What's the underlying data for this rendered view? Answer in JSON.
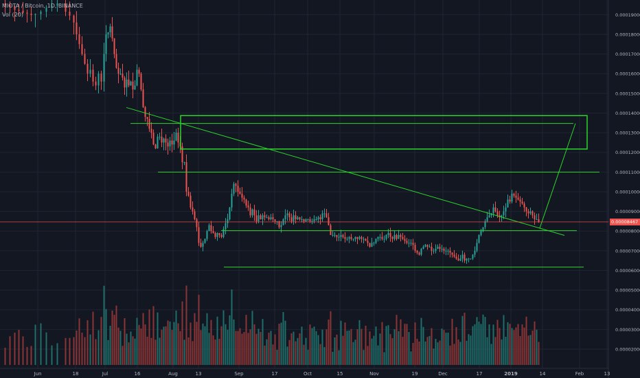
{
  "header": {
    "symbol_line": "MIOTA / Bitcoin, 1D, BINANCE",
    "volume_line": "Vol (20)"
  },
  "colors": {
    "background": "#131722",
    "grid": "#1f2433",
    "up": "#26a69a",
    "down": "#ef5350",
    "volume_up": "#1e6e6a",
    "volume_down": "#8b3436",
    "annotation": "#2bd62b",
    "axis_text": "#b2b5be"
  },
  "chart_data": {
    "type": "candlestick",
    "x_ticks": [
      "Jun",
      "18",
      "Jul",
      "16",
      "Aug",
      "13",
      "Sep",
      "17",
      "Oct",
      "15",
      "Nov",
      "19",
      "Dec",
      "17",
      "2019",
      "14",
      "Feb",
      "13"
    ],
    "y_ticks": [
      "0.00019000",
      "0.00018000",
      "0.00017000",
      "0.00016000",
      "0.00015000",
      "0.00014000",
      "0.00013000",
      "0.00012000",
      "0.00011000",
      "0.00010000",
      "0.00009000",
      "0.00008000",
      "0.00007000",
      "0.00006000",
      "0.00005000",
      "0.00004000",
      "0.00003000",
      "0.00002000"
    ],
    "ylim": [
      1.58e-05,
      0.0001957
    ],
    "last_price": "0.00008467",
    "last_price_value": 8.467e-05,
    "close_path": [
      [
        0,
        0.0001957
      ],
      [
        8,
        0.000195
      ],
      [
        15,
        0.000194
      ],
      [
        22,
        0.0001925
      ],
      [
        28,
        0.000192
      ],
      [
        34,
        0.000191
      ],
      [
        40,
        0.0001905
      ],
      [
        46,
        0.0001898
      ],
      [
        52,
        0.0001903
      ],
      [
        60,
        0.0001915
      ],
      [
        68,
        0.0001935
      ],
      [
        76,
        0.0001945
      ],
      [
        84,
        0.0001957
      ],
      [
        96,
        0.0001915
      ],
      [
        102,
        0.0001895
      ],
      [
        108,
        0.000186
      ],
      [
        112,
        0.00018
      ],
      [
        116,
        0.000175
      ],
      [
        120,
        0.00017
      ],
      [
        124,
        0.000165
      ],
      [
        128,
        0.00016
      ],
      [
        132,
        0.000162
      ],
      [
        136,
        0.000156
      ],
      [
        140,
        0.000154
      ],
      [
        144,
        0.00016
      ],
      [
        148,
        0.000156
      ],
      [
        152,
        0.00017
      ],
      [
        155,
        0.00018
      ],
      [
        158,
        0.000181
      ],
      [
        161,
        0.000184
      ],
      [
        164,
        0.000178
      ],
      [
        167,
        0.00017
      ],
      [
        170,
        0.000163
      ],
      [
        173,
        0.00016
      ],
      [
        176,
        0.00016
      ],
      [
        179,
        0.000158
      ],
      [
        182,
        0.000153
      ],
      [
        185,
        0.000157
      ],
      [
        188,
        0.000154
      ],
      [
        191,
        0.000156
      ],
      [
        194,
        0.000152
      ],
      [
        197,
        0.000154
      ],
      [
        200,
        0.000162
      ],
      [
        203,
        0.00016
      ],
      [
        206,
        0.000152
      ],
      [
        209,
        0.000143
      ],
      [
        212,
        0.000138
      ],
      [
        215,
        0.000137
      ],
      [
        218,
        0.000132
      ],
      [
        221,
        0.00013
      ],
      [
        224,
        0.000124
      ],
      [
        227,
        0.000122
      ],
      [
        230,
        0.000128
      ],
      [
        233,
        0.000128
      ],
      [
        236,
        0.000125
      ],
      [
        239,
        0.000127
      ],
      [
        242,
        0.000125
      ],
      [
        245,
        0.000123
      ],
      [
        248,
        0.000126
      ],
      [
        251,
        0.000124
      ],
      [
        254,
        0.000126
      ],
      [
        257,
        0.00013
      ],
      [
        260,
        0.000125
      ],
      [
        263,
        0.000123
      ],
      [
        266,
        0.000115
      ],
      [
        269,
        0.000115
      ],
      [
        272,
        0.0001
      ],
      [
        275,
        9.8e-05
      ],
      [
        278,
        9.2e-05
      ],
      [
        281,
        9e-05
      ],
      [
        284,
        8.6e-05
      ],
      [
        287,
        8.2e-05
      ],
      [
        290,
        7.4e-05
      ],
      [
        293,
        7.2e-05
      ],
      [
        296,
        7.4e-05
      ],
      [
        299,
        7.6e-05
      ],
      [
        302,
        8e-05
      ],
      [
        305,
        8.3e-05
      ],
      [
        308,
        8e-05
      ],
      [
        311,
        7.9e-05
      ],
      [
        314,
        7.7e-05
      ],
      [
        317,
        7.9e-05
      ],
      [
        320,
        7.8e-05
      ],
      [
        323,
        7.7e-05
      ],
      [
        326,
        8.1e-05
      ],
      [
        329,
        8.4e-05
      ],
      [
        332,
        8.6e-05
      ],
      [
        335,
        9.2e-05
      ],
      [
        338,
        9.9e-05
      ],
      [
        341,
        0.000104
      ],
      [
        344,
        0.000103
      ],
      [
        347,
        0.0001
      ],
      [
        350,
        9.9e-05
      ],
      [
        353,
        9.7e-05
      ],
      [
        356,
        9.6e-05
      ],
      [
        359,
        9.3e-05
      ],
      [
        362,
        9.2e-05
      ],
      [
        365,
        8.8e-05
      ],
      [
        368,
        9.1e-05
      ],
      [
        371,
        8.8e-05
      ],
      [
        374,
        8.5e-05
      ],
      [
        377,
        8.8e-05
      ],
      [
        380,
        8.6e-05
      ],
      [
        383,
        8.8e-05
      ],
      [
        386,
        8.7e-05
      ],
      [
        389,
        8.7e-05
      ],
      [
        392,
        8.6e-05
      ],
      [
        395,
        8.7e-05
      ],
      [
        398,
        8.6e-05
      ],
      [
        401,
        8.5e-05
      ],
      [
        404,
        8.5e-05
      ],
      [
        407,
        8.2e-05
      ],
      [
        410,
        8.3e-05
      ],
      [
        413,
        8.6e-05
      ],
      [
        416,
        8.8e-05
      ],
      [
        419,
        8.9e-05
      ],
      [
        422,
        8.7e-05
      ],
      [
        425,
        8.5e-05
      ],
      [
        428,
        8.8e-05
      ],
      [
        431,
        8.6e-05
      ],
      [
        434,
        8.7e-05
      ],
      [
        437,
        8.6e-05
      ],
      [
        440,
        8.6e-05
      ],
      [
        443,
        8.5e-05
      ],
      [
        446,
        8.6e-05
      ],
      [
        449,
        8.6e-05
      ],
      [
        452,
        8.5e-05
      ],
      [
        455,
        8.5e-05
      ],
      [
        458,
        8.6e-05
      ],
      [
        461,
        8.6e-05
      ],
      [
        464,
        8.7e-05
      ],
      [
        467,
        8.6e-05
      ],
      [
        470,
        8.9e-05
      ],
      [
        473,
        8.9e-05
      ],
      [
        476,
        8.7e-05
      ],
      [
        479,
        8.3e-05
      ],
      [
        482,
        7.8e-05
      ],
      [
        485,
        7.8e-05
      ],
      [
        488,
        7.8e-05
      ],
      [
        491,
        7.7e-05
      ],
      [
        494,
        7.7e-05
      ],
      [
        497,
        7.8e-05
      ],
      [
        500,
        7.7e-05
      ],
      [
        503,
        7.6e-05
      ],
      [
        506,
        7.6e-05
      ],
      [
        509,
        7.7e-05
      ],
      [
        512,
        7.6e-05
      ],
      [
        515,
        7.6e-05
      ],
      [
        518,
        7.7e-05
      ],
      [
        521,
        7.6e-05
      ],
      [
        524,
        7.7e-05
      ],
      [
        527,
        7.6e-05
      ],
      [
        530,
        7.6e-05
      ],
      [
        533,
        7.5e-05
      ],
      [
        536,
        7.4e-05
      ],
      [
        539,
        7.2e-05
      ],
      [
        542,
        7.4e-05
      ],
      [
        545,
        7.4e-05
      ],
      [
        548,
        7.6e-05
      ],
      [
        551,
        7.7e-05
      ],
      [
        554,
        7.7e-05
      ],
      [
        557,
        7.6e-05
      ],
      [
        560,
        7.6e-05
      ],
      [
        563,
        7.8e-05
      ],
      [
        566,
        7.9e-05
      ],
      [
        569,
        7.7e-05
      ],
      [
        572,
        7.6e-05
      ],
      [
        575,
        7.8e-05
      ],
      [
        578,
        7.6e-05
      ],
      [
        581,
        7.8e-05
      ],
      [
        584,
        7.7e-05
      ],
      [
        587,
        7.6e-05
      ],
      [
        590,
        7.5e-05
      ],
      [
        593,
        7.4e-05
      ],
      [
        596,
        7.4e-05
      ],
      [
        599,
        7.4e-05
      ],
      [
        602,
        7.3e-05
      ],
      [
        605,
        7e-05
      ],
      [
        608,
        6.9e-05
      ],
      [
        611,
        6.8e-05
      ],
      [
        614,
        7.1e-05
      ],
      [
        617,
        7.2e-05
      ],
      [
        620,
        7.3e-05
      ],
      [
        623,
        7.2e-05
      ],
      [
        626,
        7.2e-05
      ],
      [
        629,
        7e-05
      ],
      [
        632,
        7e-05
      ],
      [
        635,
        7.1e-05
      ],
      [
        638,
        7.2e-05
      ],
      [
        641,
        7.1e-05
      ],
      [
        644,
        7.1e-05
      ],
      [
        647,
        7e-05
      ],
      [
        650,
        7e-05
      ],
      [
        653,
        7e-05
      ],
      [
        656,
        6.9e-05
      ],
      [
        659,
        6.8e-05
      ],
      [
        662,
        6.7e-05
      ],
      [
        665,
        6.6e-05
      ],
      [
        668,
        6.5e-05
      ],
      [
        671,
        6.6e-05
      ],
      [
        674,
        6.8e-05
      ],
      [
        677,
        6.5e-05
      ],
      [
        680,
        6.6e-05
      ],
      [
        683,
        6.6e-05
      ],
      [
        686,
        6.6e-05
      ],
      [
        689,
        6.8e-05
      ],
      [
        692,
        7e-05
      ],
      [
        695,
        7.4e-05
      ],
      [
        698,
        7.8e-05
      ],
      [
        701,
        8e-05
      ],
      [
        704,
        8.2e-05
      ],
      [
        707,
        8.5e-05
      ],
      [
        710,
        8.7e-05
      ],
      [
        713,
        8.8e-05
      ],
      [
        716,
        8.9e-05
      ],
      [
        719,
        9.2e-05
      ],
      [
        722,
        9e-05
      ],
      [
        725,
        8.8e-05
      ],
      [
        728,
        8.7e-05
      ],
      [
        731,
        8.8e-05
      ],
      [
        734,
        9e-05
      ],
      [
        737,
        9.2e-05
      ],
      [
        740,
        9.6e-05
      ],
      [
        743,
        9.5e-05
      ],
      [
        746,
        9.9e-05
      ],
      [
        749,
        9.8e-05
      ],
      [
        752,
        9.7e-05
      ],
      [
        755,
        9.6e-05
      ],
      [
        758,
        9.5e-05
      ],
      [
        761,
        9.4e-05
      ],
      [
        764,
        9.2e-05
      ],
      [
        767,
        9e-05
      ],
      [
        770,
        8.9e-05
      ],
      [
        773,
        9e-05
      ],
      [
        776,
        8.8e-05
      ],
      [
        779,
        8.6e-05
      ],
      [
        782,
        8.6e-05
      ],
      [
        785,
        8.47e-05
      ]
    ],
    "annotations": {
      "rectangles": [
        {
          "x0": 263,
          "x1": 855,
          "y_top": 0.0001387,
          "y_bottom": 0.0001217
        }
      ],
      "horizontal_lines": [
        {
          "x0": 190,
          "x1": 835,
          "y": 0.0001347
        },
        {
          "x0": 230,
          "x1": 873,
          "y": 0.00011
        },
        {
          "x0": 322,
          "x1": 840,
          "y": 8.02e-05
        },
        {
          "x0": 326,
          "x1": 850,
          "y": 6.17e-05
        }
      ],
      "trend_lines": [
        {
          "x0": 184,
          "y0": 0.0001428,
          "x1": 822,
          "y1": 7.78e-05
        },
        {
          "x0": 786,
          "y0": 8.15e-05,
          "x1": 838,
          "y1": 0.0001347
        }
      ]
    }
  }
}
